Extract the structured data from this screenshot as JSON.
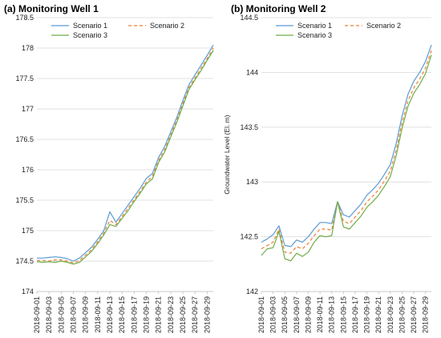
{
  "chart_data": [
    {
      "type": "line",
      "title": "(a) Monitoring Well 1",
      "ylabel": "",
      "ylim": [
        174,
        178.5
      ],
      "yticks": [
        174,
        174.5,
        175,
        175.5,
        176,
        176.5,
        177,
        177.5,
        178,
        178.5
      ],
      "ytick_labels": [
        "174",
        "174.5",
        "175",
        "175.5",
        "176",
        "176.5",
        "177",
        "177.5",
        "178",
        "178.5"
      ],
      "x": [
        "2018-09-01",
        "2018-09-02",
        "2018-09-03",
        "2018-09-04",
        "2018-09-05",
        "2018-09-06",
        "2018-09-07",
        "2018-09-08",
        "2018-09-09",
        "2018-09-10",
        "2018-09-11",
        "2018-09-12",
        "2018-09-13",
        "2018-09-14",
        "2018-09-15",
        "2018-09-16",
        "2018-09-17",
        "2018-09-18",
        "2018-09-19",
        "2018-09-20",
        "2018-09-21",
        "2018-09-22",
        "2018-09-23",
        "2018-09-24",
        "2018-09-25",
        "2018-09-26",
        "2018-09-27",
        "2018-09-28",
        "2018-09-29",
        "2018-09-30"
      ],
      "xtick_labels": [
        "2018-09-01",
        "2018-09-03",
        "2018-09-05",
        "2018-09-07",
        "2018-09-09",
        "2018-09-11",
        "2018-09-13",
        "2018-09-15",
        "2018-09-17",
        "2018-09-19",
        "2018-09-21",
        "2018-09-23",
        "2018-09-25",
        "2018-09-27",
        "2018-09-29"
      ],
      "legend_position": "top",
      "series": [
        {
          "name": "Scenario 1",
          "color": "#5b9bd5",
          "dash": "solid",
          "values": [
            174.55,
            174.55,
            174.56,
            174.57,
            174.56,
            174.54,
            174.5,
            174.55,
            174.64,
            174.73,
            174.86,
            175.0,
            175.31,
            175.14,
            175.28,
            175.42,
            175.56,
            175.7,
            175.86,
            175.94,
            176.2,
            176.38,
            176.62,
            176.86,
            177.14,
            177.4,
            177.56,
            177.72,
            177.88,
            178.05
          ]
        },
        {
          "name": "Scenario 2",
          "color": "#ed7d31",
          "dash": "4,3",
          "values": [
            174.51,
            174.51,
            174.5,
            174.52,
            174.52,
            174.5,
            174.47,
            174.51,
            174.6,
            174.69,
            174.82,
            174.96,
            175.17,
            175.1,
            175.23,
            175.37,
            175.51,
            175.65,
            175.8,
            175.89,
            176.15,
            176.33,
            176.57,
            176.81,
            177.09,
            177.35,
            177.51,
            177.67,
            177.83,
            178.0
          ]
        },
        {
          "name": "Scenario 3",
          "color": "#70ad47",
          "dash": "solid",
          "values": [
            174.49,
            174.48,
            174.49,
            174.48,
            174.5,
            174.48,
            174.45,
            174.48,
            174.57,
            174.66,
            174.79,
            174.93,
            175.1,
            175.07,
            175.2,
            175.33,
            175.48,
            175.62,
            175.77,
            175.85,
            176.12,
            176.29,
            176.54,
            176.78,
            177.05,
            177.32,
            177.48,
            177.63,
            177.8,
            177.96
          ]
        }
      ]
    },
    {
      "type": "line",
      "title": "(b) Monitoring Well 2",
      "ylabel": "Groundwater Level (El. m)",
      "ylim": [
        142,
        144.5
      ],
      "yticks": [
        142,
        142.5,
        143,
        143.5,
        144,
        144.5
      ],
      "ytick_labels": [
        "142",
        "142.5",
        "143",
        "143.5",
        "144",
        "144.5"
      ],
      "x": [
        "2018-09-01",
        "2018-09-02",
        "2018-09-03",
        "2018-09-04",
        "2018-09-05",
        "2018-09-06",
        "2018-09-07",
        "2018-09-08",
        "2018-09-09",
        "2018-09-10",
        "2018-09-11",
        "2018-09-12",
        "2018-09-13",
        "2018-09-14",
        "2018-09-15",
        "2018-09-16",
        "2018-09-17",
        "2018-09-18",
        "2018-09-19",
        "2018-09-20",
        "2018-09-21",
        "2018-09-22",
        "2018-09-23",
        "2018-09-24",
        "2018-09-25",
        "2018-09-26",
        "2018-09-27",
        "2018-09-28",
        "2018-09-29",
        "2018-09-30"
      ],
      "xtick_labels": [
        "2018-09-01",
        "2018-09-03",
        "2018-09-05",
        "2018-09-07",
        "2018-09-09",
        "2018-09-11",
        "2018-09-13",
        "2018-09-15",
        "2018-09-17",
        "2018-09-19",
        "2018-09-21",
        "2018-09-23",
        "2018-09-25",
        "2018-09-27",
        "2018-09-29"
      ],
      "legend_position": "top",
      "series": [
        {
          "name": "Scenario 1",
          "color": "#5b9bd5",
          "dash": "solid",
          "values": [
            142.45,
            142.48,
            142.52,
            142.6,
            142.42,
            142.41,
            142.47,
            142.45,
            142.5,
            142.57,
            142.63,
            142.63,
            142.62,
            142.82,
            142.7,
            142.68,
            142.74,
            142.8,
            142.88,
            142.93,
            142.99,
            143.07,
            143.16,
            143.35,
            143.6,
            143.8,
            143.92,
            144.0,
            144.1,
            144.25
          ]
        },
        {
          "name": "Scenario 2",
          "color": "#ed7d31",
          "dash": "4,3",
          "values": [
            142.39,
            142.42,
            142.45,
            142.57,
            142.36,
            142.35,
            142.41,
            142.39,
            142.44,
            142.51,
            142.57,
            142.57,
            142.56,
            142.82,
            142.64,
            142.62,
            142.68,
            142.74,
            142.82,
            142.87,
            142.93,
            143.01,
            143.1,
            143.29,
            143.54,
            143.74,
            143.86,
            143.94,
            144.04,
            144.2
          ]
        },
        {
          "name": "Scenario 3",
          "color": "#70ad47",
          "dash": "solid",
          "values": [
            142.33,
            142.39,
            142.4,
            142.55,
            142.3,
            142.28,
            142.35,
            142.32,
            142.36,
            142.45,
            142.51,
            142.5,
            142.51,
            142.82,
            142.59,
            142.57,
            142.63,
            142.69,
            142.77,
            142.82,
            142.88,
            142.96,
            143.05,
            143.24,
            143.49,
            143.69,
            143.81,
            143.89,
            143.99,
            144.16
          ]
        }
      ]
    }
  ]
}
